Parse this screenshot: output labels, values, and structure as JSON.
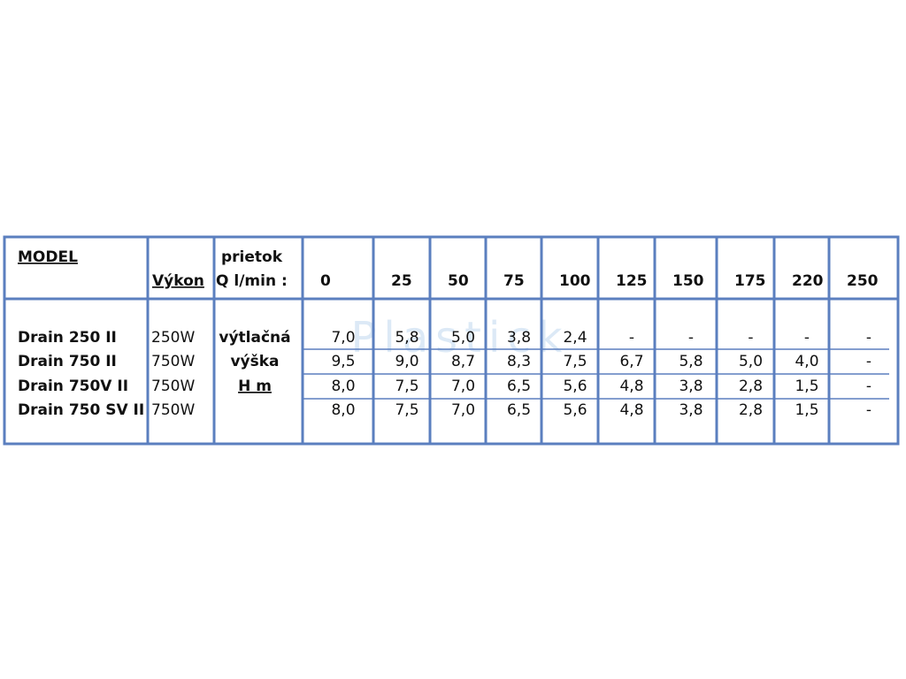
{
  "table": {
    "header": {
      "model": "MODEL",
      "power": "Výkon",
      "flow_label": [
        "prietok",
        "Q l/min :"
      ],
      "flows": [
        0,
        25,
        50,
        75,
        100,
        125,
        150,
        175,
        220,
        250
      ]
    },
    "rows": [
      {
        "model": "Drain 250 II",
        "power": "250W",
        "label": "výtlačná",
        "values": [
          "7,0",
          "5,8",
          "5,0",
          "3,8",
          "2,4",
          "-",
          "-",
          "-",
          "-",
          "-"
        ]
      },
      {
        "model": "Drain 750  II",
        "power": "750W",
        "label": "výška",
        "values": [
          "9,5",
          "9,0",
          "8,7",
          "8,3",
          "7,5",
          "6,7",
          "5,8",
          "5,0",
          "4,0",
          "-"
        ]
      },
      {
        "model": "Drain 750V II",
        "power": "750W",
        "label": "H m",
        "values": [
          "8,0",
          "7,5",
          "7,0",
          "6,5",
          "5,6",
          "4,8",
          "3,8",
          "2,8",
          "1,5",
          "-"
        ]
      },
      {
        "model": "Drain 750 SV II",
        "power": "750W",
        "values": [
          "8,0",
          "7,5",
          "7,0",
          "6,5",
          "5,6",
          "4,8",
          "3,8",
          "2,8",
          "1,5",
          "-"
        ]
      }
    ]
  },
  "watermark": "Plastick"
}
